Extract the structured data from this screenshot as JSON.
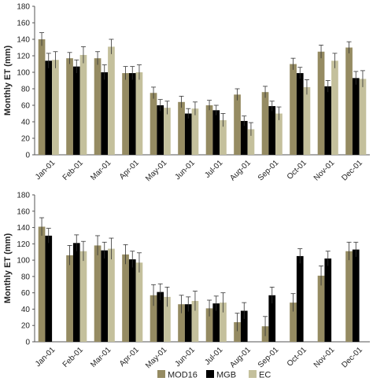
{
  "colors": {
    "MOD16": "#958b62",
    "MGB": "#000000",
    "EC": "#c4c09c",
    "axis": "#555555"
  },
  "legend": [
    {
      "label": "MOD16",
      "color_key": "MOD16"
    },
    {
      "label": "MGB",
      "color_key": "MGB"
    },
    {
      "label": "EC",
      "color_key": "EC"
    }
  ],
  "chart_data": [
    {
      "type": "bar",
      "ylabel": "Monthly ET (mm)",
      "ylim": [
        0,
        180
      ],
      "yticks": [
        0,
        20,
        40,
        60,
        80,
        100,
        120,
        140,
        160,
        180
      ],
      "categories": [
        "Jan-01",
        "Feb-01",
        "Mar-01",
        "Apr-01",
        "May-01",
        "Jun-01",
        "Jul-01",
        "Aug-01",
        "Sep-01",
        "Oct-01",
        "Nov-01",
        "Dec-01"
      ],
      "series": [
        {
          "name": "MOD16",
          "values": [
            140,
            117,
            117,
            99,
            75,
            64,
            60,
            73,
            76,
            110,
            125,
            130
          ],
          "errors": [
            8,
            7,
            8,
            8,
            7,
            7,
            6,
            7,
            7,
            7,
            8,
            7
          ]
        },
        {
          "name": "MGB",
          "values": [
            114,
            107,
            100,
            99,
            60,
            50,
            54,
            41,
            59,
            99,
            83,
            93
          ],
          "errors": [
            9,
            8,
            9,
            8,
            7,
            6,
            6,
            6,
            6,
            7,
            7,
            8
          ]
        },
        {
          "name": "EC",
          "values": [
            115,
            121,
            131,
            100,
            57,
            56,
            42,
            31,
            50,
            82,
            114,
            92
          ],
          "errors": [
            10,
            10,
            9,
            9,
            8,
            8,
            8,
            8,
            8,
            9,
            9,
            10
          ]
        }
      ]
    },
    {
      "type": "bar",
      "ylabel": "Monthly ET (mm)",
      "ylim": [
        0,
        180
      ],
      "yticks": [
        0,
        20,
        40,
        60,
        80,
        100,
        120,
        140,
        160,
        180
      ],
      "categories": [
        "Jan-01",
        "Feb-01",
        "Mar-01",
        "Apr-01",
        "May-01",
        "Jun-01",
        "Jul-01",
        "Aug-01",
        "Sep-01",
        "Oct-01",
        "Nov-01",
        "Dec-01"
      ],
      "series": [
        {
          "name": "MOD16",
          "values": [
            141,
            106,
            118,
            107,
            57,
            46,
            41,
            24,
            19,
            48,
            81,
            111
          ],
          "errors": [
            11,
            12,
            12,
            12,
            13,
            11,
            10,
            11,
            12,
            11,
            12,
            11
          ]
        },
        {
          "name": "MGB",
          "values": [
            130,
            121,
            112,
            101,
            61,
            46,
            47,
            38,
            57,
            105,
            102,
            113
          ],
          "errors": [
            9,
            10,
            10,
            10,
            10,
            9,
            9,
            10,
            10,
            9,
            9,
            9
          ]
        },
        {
          "name": "EC",
          "values": [
            null,
            111,
            114,
            97,
            55,
            50,
            48,
            null,
            null,
            null,
            null,
            null
          ],
          "errors": [
            0,
            12,
            13,
            12,
            12,
            12,
            12,
            0,
            0,
            0,
            0,
            0
          ]
        }
      ]
    }
  ]
}
